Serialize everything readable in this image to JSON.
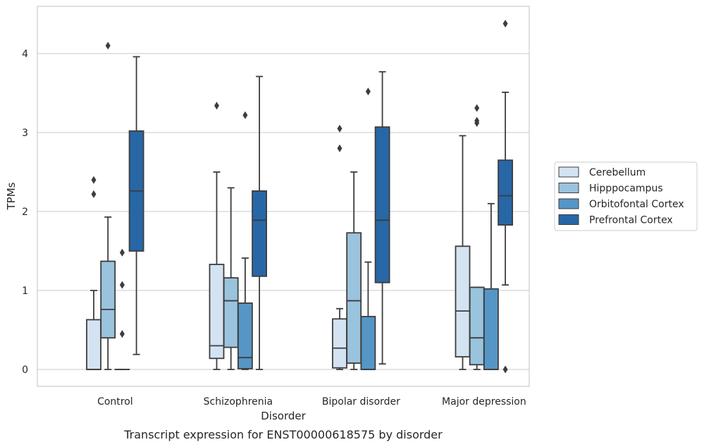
{
  "chart_data": {
    "type": "box",
    "caption": "Transcript expression for ENST00000618575 by disorder",
    "xlabel": "Disorder",
    "ylabel": "TPMs",
    "ylim": [
      -0.21,
      4.6
    ],
    "yticks": [
      0,
      1,
      2,
      3,
      4
    ],
    "grid": "horizontal",
    "legend_position": "right",
    "categories": [
      "Control",
      "Schizophrenia",
      "Bipolar disorder",
      "Major depression"
    ],
    "series": [
      {
        "name": "Cerebellum",
        "color": "#d4e3f2",
        "boxes": [
          {
            "whisker_low": 0,
            "q1": 0,
            "median": 0,
            "q3": 0.63,
            "whisker_high": 1.0,
            "outliers": [
              2.22,
              2.4
            ]
          },
          {
            "whisker_low": 0,
            "q1": 0.14,
            "median": 0.3,
            "q3": 1.33,
            "whisker_high": 2.5,
            "outliers": [
              3.34
            ]
          },
          {
            "whisker_low": 0,
            "q1": 0.02,
            "median": 0.27,
            "q3": 0.64,
            "whisker_high": 0.77,
            "outliers": [
              2.8,
              3.05
            ]
          },
          {
            "whisker_low": 0,
            "q1": 0.16,
            "median": 0.74,
            "q3": 1.56,
            "whisker_high": 2.96,
            "outliers": []
          }
        ]
      },
      {
        "name": "Hipppocampus",
        "color": "#9ac3dd",
        "boxes": [
          {
            "whisker_low": 0,
            "q1": 0.4,
            "median": 0.76,
            "q3": 1.37,
            "whisker_high": 1.93,
            "outliers": [
              4.1
            ]
          },
          {
            "whisker_low": 0,
            "q1": 0.28,
            "median": 0.87,
            "q3": 1.16,
            "whisker_high": 2.3,
            "outliers": []
          },
          {
            "whisker_low": 0,
            "q1": 0.08,
            "median": 0.87,
            "q3": 1.73,
            "whisker_high": 2.5,
            "outliers": []
          },
          {
            "whisker_low": 0,
            "q1": 0.06,
            "median": 0.4,
            "q3": 1.04,
            "whisker_high": 1.04,
            "outliers": [
              3.12,
              3.15,
              3.31
            ]
          }
        ]
      },
      {
        "name": "Orbitofontal Cortex",
        "color": "#5596c6",
        "boxes": [
          {
            "whisker_low": 0,
            "q1": 0,
            "median": 0,
            "q3": 0,
            "whisker_high": 0,
            "outliers": [
              0.45,
              1.07,
              1.48
            ]
          },
          {
            "whisker_low": 0,
            "q1": 0.01,
            "median": 0.15,
            "q3": 0.84,
            "whisker_high": 1.41,
            "outliers": [
              3.22
            ]
          },
          {
            "whisker_low": 0,
            "q1": 0,
            "median": 0,
            "q3": 0.67,
            "whisker_high": 1.36,
            "outliers": [
              3.52
            ]
          },
          {
            "whisker_low": 0,
            "q1": 0,
            "median": 0,
            "q3": 1.02,
            "whisker_high": 2.1,
            "outliers": []
          }
        ]
      },
      {
        "name": "Prefrontal Cortex",
        "color": "#2767a6",
        "boxes": [
          {
            "whisker_low": 0.19,
            "q1": 1.5,
            "median": 2.26,
            "q3": 3.02,
            "whisker_high": 3.96,
            "outliers": []
          },
          {
            "whisker_low": 0,
            "q1": 1.18,
            "median": 1.89,
            "q3": 2.26,
            "whisker_high": 3.71,
            "outliers": []
          },
          {
            "whisker_low": 0.07,
            "q1": 1.1,
            "median": 1.89,
            "q3": 3.07,
            "whisker_high": 3.77,
            "outliers": []
          },
          {
            "whisker_low": 1.07,
            "q1": 1.83,
            "median": 2.2,
            "q3": 2.65,
            "whisker_high": 3.51,
            "outliers": [
              0,
              4.38
            ]
          }
        ]
      }
    ]
  }
}
